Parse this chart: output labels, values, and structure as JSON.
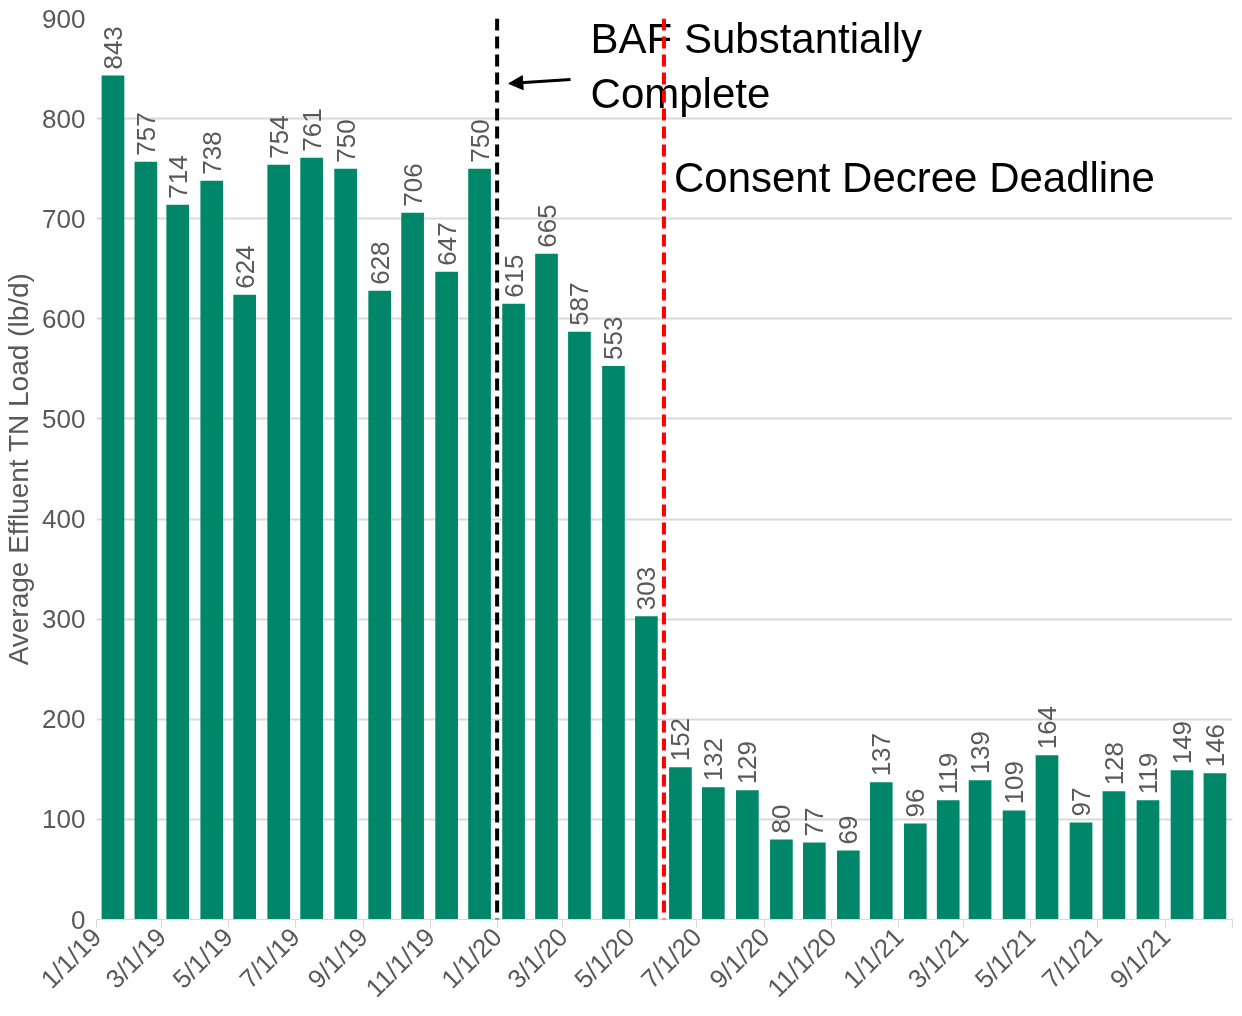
{
  "chart_data": {
    "type": "bar",
    "ylabel": "Average Effluent TN Load (lb/d)",
    "x": [
      "2019-01-16",
      "2019-02-15",
      "2019-03-16",
      "2019-04-16",
      "2019-05-16",
      "2019-06-16",
      "2019-07-16",
      "2019-08-16",
      "2019-09-16",
      "2019-10-16",
      "2019-11-16",
      "2019-12-16",
      "2020-01-16",
      "2020-02-15",
      "2020-03-16",
      "2020-04-16",
      "2020-05-16",
      "2020-06-16",
      "2020-07-16",
      "2020-08-16",
      "2020-09-16",
      "2020-10-16",
      "2020-11-16",
      "2020-12-16",
      "2021-01-16",
      "2021-02-15",
      "2021-03-16",
      "2021-04-16",
      "2021-05-16",
      "2021-06-16",
      "2021-07-16",
      "2021-08-16",
      "2021-09-16",
      "2021-10-16"
    ],
    "values": [
      843,
      757,
      714,
      738,
      624,
      754,
      761,
      750,
      628,
      706,
      647,
      750,
      615,
      665,
      587,
      553,
      303,
      152,
      132,
      129,
      80,
      77,
      69,
      137,
      96,
      119,
      139,
      109,
      164,
      97,
      128,
      119,
      149,
      146
    ],
    "color": "#00876a",
    "data_labels": true,
    "xlim": [
      "2019-01-01",
      "2021-11-01"
    ],
    "xticks": [
      {
        "value": "2019-01-01",
        "label": "1/1/19"
      },
      {
        "value": "2019-03-01",
        "label": "3/1/19"
      },
      {
        "value": "2019-05-01",
        "label": "5/1/19"
      },
      {
        "value": "2019-07-01",
        "label": "7/1/19"
      },
      {
        "value": "2019-09-01",
        "label": "9/1/19"
      },
      {
        "value": "2019-11-01",
        "label": "11/1/19"
      },
      {
        "value": "2020-01-01",
        "label": "1/1/20"
      },
      {
        "value": "2020-03-01",
        "label": "3/1/20"
      },
      {
        "value": "2020-05-01",
        "label": "5/1/20"
      },
      {
        "value": "2020-07-01",
        "label": "7/1/20"
      },
      {
        "value": "2020-09-01",
        "label": "9/1/20"
      },
      {
        "value": "2020-11-01",
        "label": "11/1/20"
      },
      {
        "value": "2021-01-01",
        "label": "1/1/21"
      },
      {
        "value": "2021-03-01",
        "label": "3/1/21"
      },
      {
        "value": "2021-05-01",
        "label": "5/1/21"
      },
      {
        "value": "2021-07-01",
        "label": "7/1/21"
      },
      {
        "value": "2021-09-01",
        "label": "9/1/21"
      },
      {
        "value": "2021-11-01",
        "label": null
      }
    ],
    "ylim": [
      0,
      900
    ],
    "yticks": [
      0,
      100,
      200,
      300,
      400,
      500,
      600,
      700,
      800,
      900
    ],
    "grid": "y",
    "ref_lines": [
      {
        "axis": "x",
        "value": "2020-01-01",
        "label": "BAF Substantially\nComplete",
        "color": "#000000",
        "line_style": "dashed"
      },
      {
        "axis": "x",
        "value": "2020-06-01",
        "label": "Consent Decree Deadline",
        "color": "#ff0000",
        "line_style": "dashed"
      }
    ]
  }
}
